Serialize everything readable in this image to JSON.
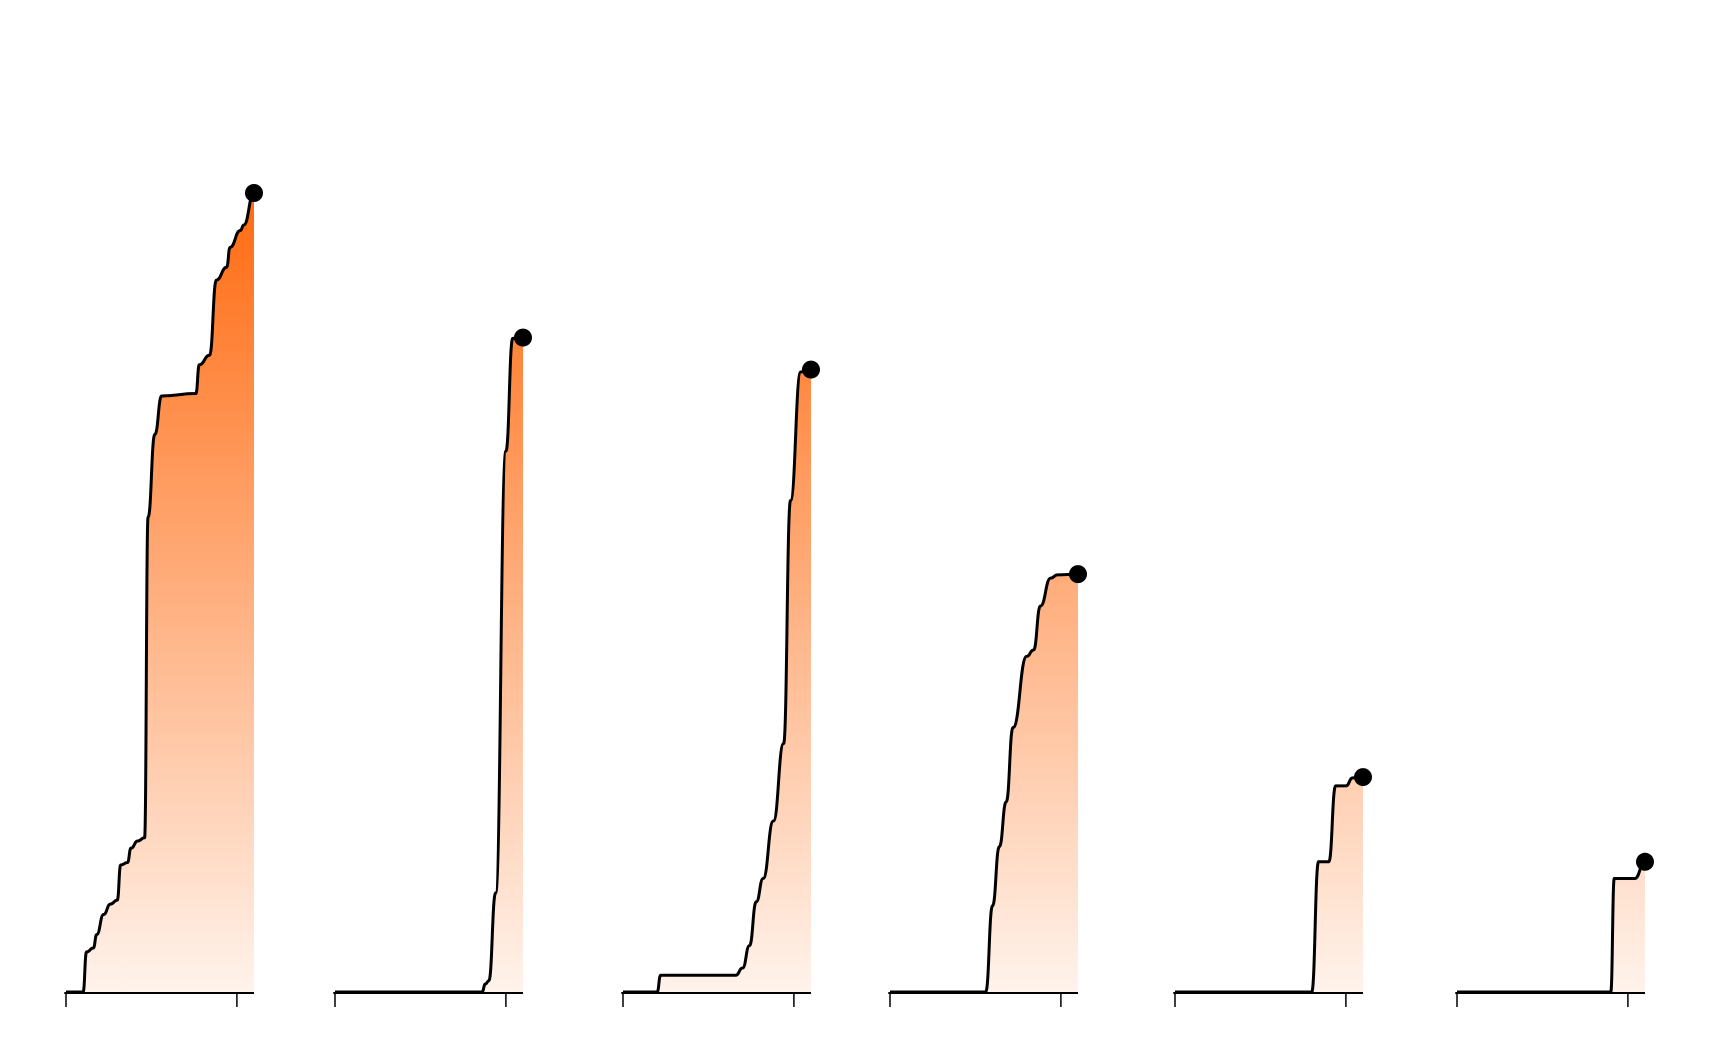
{
  "chart_data": [
    {
      "type": "area",
      "color": "#ff6a10",
      "x": [
        0,
        5,
        6,
        8,
        9,
        11,
        13,
        15,
        16,
        18,
        19,
        21,
        23,
        24,
        26,
        28,
        38,
        39,
        42,
        44,
        47,
        48,
        51,
        52,
        55
      ],
      "values": [
        0,
        0,
        5.0,
        5.5,
        7.2,
        9.7,
        11,
        11.5,
        15.9,
        16.2,
        18,
        18.9,
        19.3,
        59.4,
        69.8,
        74.6,
        74.9,
        78.5,
        79.7,
        89.1,
        90.7,
        93.2,
        95.3,
        96,
        100
      ],
      "xlim": [
        -0.5,
        55
      ],
      "xticks": [
        0,
        50
      ],
      "ylim": [
        0,
        100
      ]
    },
    {
      "type": "area",
      "color": "#ff6a10",
      "x": [
        0,
        43,
        44,
        45,
        47,
        50,
        52,
        55
      ],
      "values": [
        0,
        0,
        1,
        1.4,
        12.4,
        67.7,
        81.8,
        81.9
      ],
      "xlim": [
        -0.5,
        55
      ],
      "xticks": [
        0,
        50
      ],
      "ylim": [
        0,
        100
      ]
    },
    {
      "type": "area",
      "color": "#ff6a10",
      "x": [
        0,
        10,
        11,
        33,
        35,
        37,
        39,
        41,
        44,
        47,
        49,
        52,
        55
      ],
      "values": [
        0,
        0,
        2.1,
        2.1,
        3,
        5.8,
        11.3,
        14.2,
        21.4,
        31.1,
        61.5,
        77.6,
        77.9
      ],
      "xlim": [
        -0.5,
        55
      ],
      "xticks": [
        0,
        50
      ],
      "ylim": [
        0,
        100
      ]
    },
    {
      "type": "area",
      "color": "#ff6a10",
      "x": [
        0,
        28,
        30,
        32,
        34,
        36,
        40,
        42,
        44,
        47,
        49,
        55
      ],
      "values": [
        0,
        0,
        10.8,
        18.2,
        23.8,
        33.1,
        42,
        42.8,
        48.3,
        51.8,
        52.2,
        52.3
      ],
      "xlim": [
        -0.5,
        55
      ],
      "xticks": [
        0,
        50
      ],
      "ylim": [
        0,
        100
      ]
    },
    {
      "type": "area",
      "color": "#ff6a10",
      "x": [
        0,
        40,
        42,
        45,
        47,
        50,
        52,
        55
      ],
      "values": [
        0,
        0,
        16.3,
        16.3,
        25.8,
        25.8,
        26.8,
        26.9
      ],
      "xlim": [
        -0.5,
        55
      ],
      "xticks": [
        0,
        50
      ],
      "ylim": [
        0,
        100
      ]
    },
    {
      "type": "area",
      "color": "#ff6a10",
      "x": [
        0,
        45,
        46,
        52,
        55
      ],
      "values": [
        0,
        0,
        14.2,
        14.2,
        16.3
      ],
      "xlim": [
        -0.5,
        55
      ],
      "xticks": [
        0,
        50
      ],
      "ylim": [
        0,
        100
      ]
    }
  ]
}
